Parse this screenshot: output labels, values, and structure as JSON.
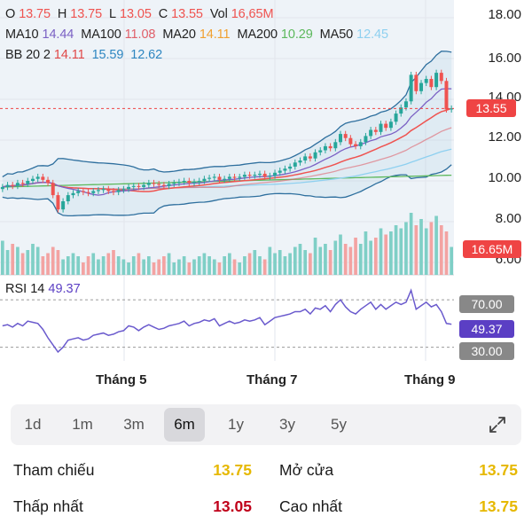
{
  "ohlc": {
    "o_label": "O",
    "o_value": "13.75",
    "h_label": "H",
    "h_value": "13.75",
    "l_label": "L",
    "l_value": "13.05",
    "c_label": "C",
    "c_value": "13.55",
    "vol_label": "Vol",
    "vol_value": "16,65M"
  },
  "ma_row": [
    {
      "label": "MA10",
      "value": "14.44",
      "color": "#7b61c4"
    },
    {
      "label": "MA100",
      "value": "11.08",
      "color": "#e0606a"
    },
    {
      "label": "MA20",
      "value": "14.11",
      "color": "#f0a030"
    },
    {
      "label": "MA200",
      "value": "10.29",
      "color": "#5cb85c"
    },
    {
      "label": "MA50",
      "value": "12.45",
      "color": "#8ed0f0"
    }
  ],
  "bb_row": {
    "label": "BB 20 2",
    "v1": "14.11",
    "v1_color": "#e04848",
    "v2": "15.59",
    "v2_color": "#2e86c1",
    "v3": "12.62",
    "v3_color": "#2e86c1"
  },
  "price_axis": [
    "18.00",
    "16.00",
    "14.00",
    "12.00",
    "10.00",
    "8.00",
    "6.00"
  ],
  "last_price_tag": "13.55",
  "volume_tag": "16.65M",
  "rsi": {
    "label": "RSI 14",
    "value": "49.37",
    "level_high": "70.00",
    "level_low": "30.00"
  },
  "x_labels": [
    "Tháng 5",
    "Tháng 7",
    "Tháng 9"
  ],
  "ranges": [
    "1d",
    "1m",
    "3m",
    "6m",
    "1y",
    "3y",
    "5y"
  ],
  "active_range": "6m",
  "stats": {
    "ref_label": "Tham chiếu",
    "ref_value": "13.75",
    "open_label": "Mở cửa",
    "open_value": "13.75",
    "low_label": "Thấp nhất",
    "low_value": "13.05",
    "high_label": "Cao nhất",
    "high_value": "13.75"
  },
  "colors": {
    "up": "#26a69a",
    "down": "#ef5350",
    "yellow": "#e6b800",
    "red_text": "#c0001a",
    "rsi_line": "#6a5acd",
    "rsi_tag": "#5b3fc4",
    "level_tag": "#888888",
    "tag_red": "#ef4444"
  },
  "chart_data": {
    "type": "candlestick",
    "price_range": [
      6,
      18
    ],
    "closes": [
      9.7,
      9.8,
      9.75,
      9.9,
      9.85,
      10.0,
      10.1,
      10.2,
      10.05,
      9.9,
      9.3,
      8.6,
      9.0,
      9.3,
      9.4,
      9.5,
      9.45,
      9.4,
      9.5,
      9.55,
      9.6,
      9.5,
      9.45,
      9.55,
      9.6,
      9.7,
      9.75,
      9.7,
      9.8,
      9.9,
      9.85,
      9.8,
      9.75,
      9.85,
      9.9,
      9.95,
      10.0,
      9.9,
      9.95,
      10.0,
      10.1,
      10.15,
      10.2,
      10.05,
      10.1,
      10.2,
      10.15,
      10.2,
      10.3,
      10.25,
      10.3,
      10.35,
      10.2,
      10.25,
      10.4,
      10.5,
      10.6,
      10.7,
      10.9,
      11.0,
      11.2,
      11.1,
      11.4,
      11.5,
      11.7,
      11.6,
      11.9,
      12.3,
      12.1,
      11.8,
      11.7,
      11.9,
      12.2,
      12.5,
      12.4,
      12.8,
      12.6,
      12.9,
      13.3,
      13.6,
      13.9,
      15.2,
      14.4,
      14.8,
      15.0,
      14.6,
      15.3,
      14.9,
      13.5,
      13.55
    ],
    "volumes": [
      0.55,
      0.4,
      0.5,
      0.45,
      0.35,
      0.4,
      0.5,
      0.45,
      0.3,
      0.35,
      0.45,
      0.4,
      0.25,
      0.3,
      0.35,
      0.3,
      0.2,
      0.3,
      0.35,
      0.25,
      0.3,
      0.35,
      0.4,
      0.3,
      0.25,
      0.2,
      0.3,
      0.35,
      0.25,
      0.3,
      0.2,
      0.25,
      0.3,
      0.35,
      0.2,
      0.25,
      0.3,
      0.2,
      0.25,
      0.3,
      0.35,
      0.3,
      0.25,
      0.2,
      0.3,
      0.35,
      0.25,
      0.2,
      0.3,
      0.35,
      0.4,
      0.3,
      0.25,
      0.45,
      0.35,
      0.4,
      0.3,
      0.35,
      0.45,
      0.5,
      0.4,
      0.35,
      0.6,
      0.45,
      0.5,
      0.4,
      0.55,
      0.65,
      0.5,
      0.45,
      0.6,
      0.5,
      0.7,
      0.55,
      0.6,
      0.75,
      0.65,
      0.7,
      0.8,
      0.75,
      0.85,
      1.0,
      0.8,
      0.9,
      0.75,
      0.85,
      0.95,
      0.8,
      0.7,
      0.45
    ],
    "rsi": [
      48,
      49,
      47,
      50,
      48,
      52,
      51,
      50,
      45,
      38,
      32,
      26,
      30,
      36,
      37,
      38,
      36,
      37,
      40,
      41,
      42,
      40,
      41,
      43,
      44,
      48,
      47,
      44,
      47,
      49,
      47,
      45,
      46,
      48,
      49,
      50,
      52,
      48,
      50,
      51,
      53,
      52,
      54,
      48,
      50,
      52,
      50,
      51,
      53,
      52,
      53,
      55,
      49,
      52,
      55,
      56,
      57,
      58,
      60,
      60,
      62,
      58,
      63,
      62,
      65,
      60,
      66,
      70,
      64,
      60,
      58,
      62,
      65,
      68,
      62,
      66,
      62,
      65,
      68,
      66,
      68,
      78,
      62,
      65,
      68,
      64,
      66,
      60,
      50,
      49.37
    ]
  }
}
